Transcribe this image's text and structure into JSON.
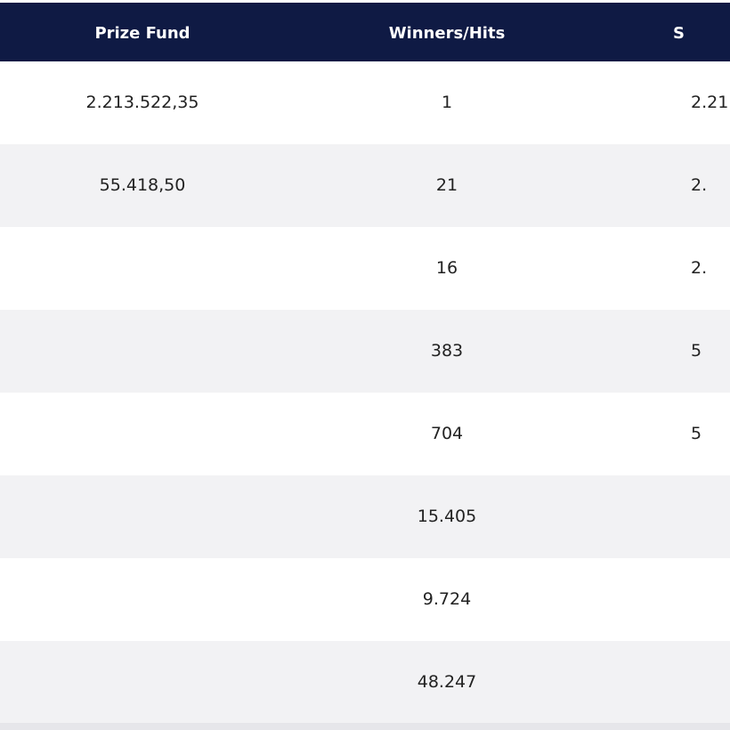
{
  "header": {
    "prize_fund": "Prize Fund",
    "winners_hits": "Winners/Hits",
    "share": "S"
  },
  "rows": [
    {
      "prize_fund": "2.213.522,35",
      "winners": "1",
      "share": "2.21"
    },
    {
      "prize_fund": "55.418,50",
      "winners": "21",
      "share": "2."
    },
    {
      "prize_fund": "",
      "winners": "16",
      "share": "2."
    },
    {
      "prize_fund": "",
      "winners": "383",
      "share": "5"
    },
    {
      "prize_fund": "",
      "winners": "704",
      "share": "5"
    },
    {
      "prize_fund": "",
      "winners": "15.405",
      "share": ""
    },
    {
      "prize_fund": "",
      "winners": "9.724",
      "share": ""
    },
    {
      "prize_fund": "",
      "winners": "48.247",
      "share": ""
    }
  ],
  "colors": {
    "header_bg": "#0f1a44",
    "row_alt_bg": "#f2f2f4",
    "text": "#222222"
  }
}
